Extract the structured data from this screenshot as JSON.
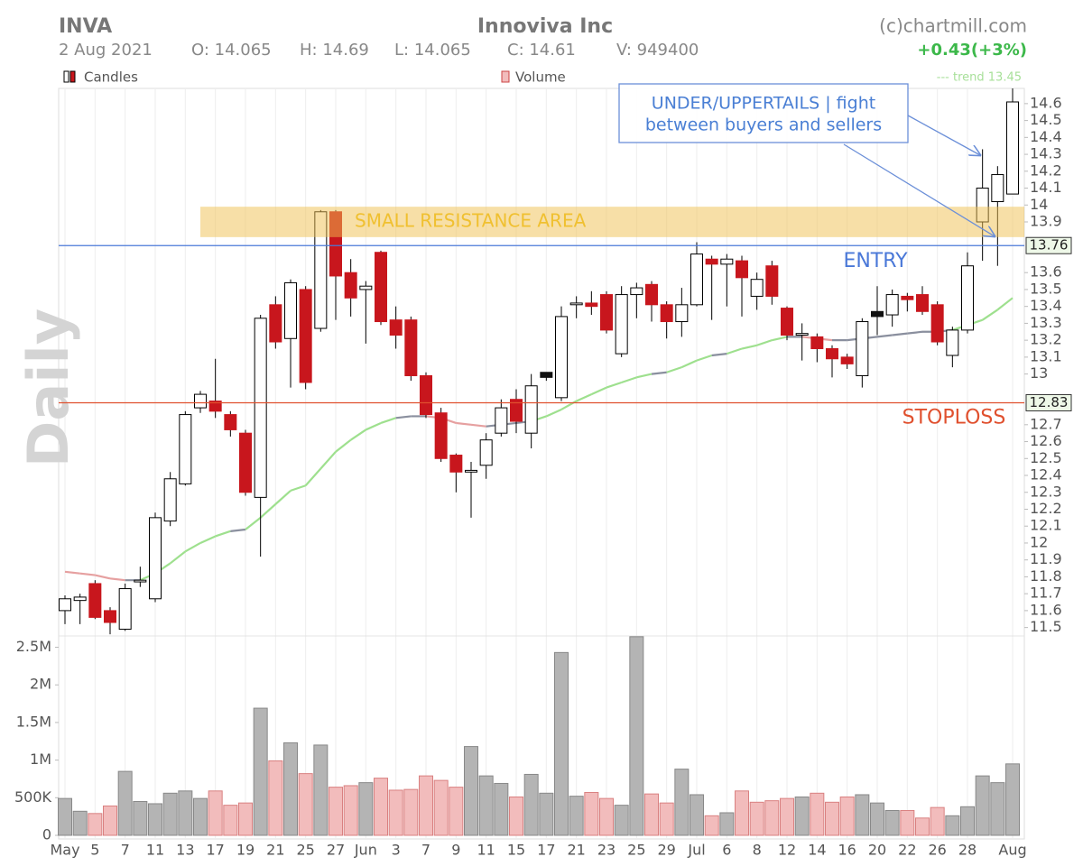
{
  "chart_data": {
    "type": "candlestick",
    "header": {
      "symbol": "INVA",
      "title": "Innoviva Inc",
      "source": "(c)chartmill.com",
      "quote": [
        "2 Aug 2021",
        "O: 14.065",
        "H: 14.69",
        "L: 14.065",
        "C: 14.61",
        "V: 949400"
      ],
      "change": "+0.43(+3%)"
    },
    "legend": {
      "candles": "Candles",
      "volume": "Volume",
      "trend": "--- trend 13.45"
    },
    "period": "Daily",
    "categories": [
      "May",
      null,
      "5",
      null,
      "7",
      null,
      "11",
      null,
      "13",
      null,
      "17",
      null,
      "19",
      null,
      "21",
      null,
      "25",
      null,
      "27",
      null,
      "Jun",
      null,
      "3",
      null,
      "7",
      null,
      "9",
      null,
      "11",
      null,
      "15",
      null,
      "17",
      null,
      "21",
      null,
      "23",
      null,
      "25",
      null,
      "29",
      null,
      "Jul",
      null,
      "6",
      null,
      "8",
      null,
      "12",
      null,
      "14",
      null,
      "16",
      null,
      "20",
      null,
      "22",
      null,
      "26",
      null,
      "28",
      null,
      null,
      "Aug"
    ],
    "open": [
      11.6,
      11.66,
      11.76,
      11.6,
      11.49,
      11.77,
      11.67,
      12.13,
      12.35,
      12.8,
      12.84,
      12.76,
      12.65,
      12.27,
      13.41,
      13.21,
      13.5,
      13.27,
      13.96,
      13.6,
      13.5,
      13.72,
      13.32,
      13.32,
      12.99,
      12.77,
      12.52,
      12.42,
      12.46,
      12.65,
      12.85,
      12.65,
      13.01,
      12.86,
      13.41,
      13.42,
      13.47,
      13.12,
      13.47,
      13.53,
      13.41,
      13.31,
      13.41,
      13.68,
      13.65,
      13.67,
      13.46,
      13.64,
      13.39,
      13.23,
      13.22,
      13.15,
      13.1,
      12.99,
      13.37,
      13.35,
      13.46,
      13.47,
      13.41,
      13.11,
      13.26,
      13.9,
      14.02,
      14.065
    ],
    "high": [
      11.69,
      11.7,
      11.78,
      11.62,
      11.76,
      11.86,
      12.18,
      12.42,
      12.78,
      12.9,
      13.09,
      12.78,
      12.67,
      13.35,
      13.46,
      13.56,
      13.52,
      13.97,
      13.97,
      13.68,
      13.55,
      13.73,
      13.4,
      13.34,
      13.01,
      12.8,
      12.53,
      12.48,
      12.65,
      12.85,
      12.91,
      13.0,
      13.01,
      13.4,
      13.46,
      13.49,
      13.49,
      13.52,
      13.54,
      13.55,
      13.43,
      13.51,
      13.78,
      13.7,
      13.71,
      13.7,
      13.6,
      13.67,
      13.4,
      13.3,
      13.24,
      13.17,
      13.12,
      13.33,
      13.52,
      13.5,
      13.48,
      13.52,
      13.43,
      13.28,
      13.72,
      14.33,
      14.23,
      14.69
    ],
    "low": [
      11.52,
      11.52,
      11.55,
      11.46,
      11.48,
      11.74,
      11.65,
      12.1,
      12.34,
      12.77,
      12.74,
      12.63,
      12.28,
      11.92,
      13.15,
      12.92,
      12.91,
      13.25,
      13.32,
      13.34,
      13.18,
      13.29,
      13.15,
      12.96,
      12.74,
      12.48,
      12.3,
      12.15,
      12.38,
      12.63,
      12.65,
      12.56,
      12.96,
      12.84,
      13.33,
      13.35,
      13.24,
      13.1,
      13.33,
      13.31,
      13.21,
      13.22,
      13.4,
      13.32,
      13.4,
      13.34,
      13.38,
      13.41,
      13.2,
      13.08,
      13.07,
      12.98,
      13.03,
      12.92,
      13.23,
      13.28,
      13.37,
      13.35,
      13.17,
      13.04,
      13.24,
      13.67,
      13.64,
      14.065
    ],
    "close": [
      11.67,
      11.68,
      11.56,
      11.53,
      11.73,
      11.78,
      12.15,
      12.38,
      12.76,
      12.88,
      12.78,
      12.67,
      12.3,
      13.33,
      13.19,
      13.54,
      12.95,
      13.96,
      13.58,
      13.45,
      13.52,
      13.31,
      13.23,
      12.99,
      12.76,
      12.5,
      12.42,
      12.43,
      12.61,
      12.8,
      12.72,
      12.93,
      12.98,
      13.34,
      13.42,
      13.4,
      13.26,
      13.47,
      13.51,
      13.41,
      13.31,
      13.41,
      13.71,
      13.65,
      13.68,
      13.57,
      13.56,
      13.46,
      13.23,
      13.24,
      13.15,
      13.09,
      13.06,
      13.31,
      13.34,
      13.47,
      13.44,
      13.37,
      13.19,
      13.26,
      13.64,
      14.1,
      14.18,
      14.61
    ],
    "ylim": [
      11.45,
      14.69
    ],
    "yticks": [
      11.5,
      11.6,
      11.7,
      11.8,
      11.9,
      12,
      12.1,
      12.2,
      12.3,
      12.4,
      12.5,
      12.6,
      12.7,
      13,
      13.1,
      13.2,
      13.3,
      13.4,
      13.5,
      13.6,
      13.9,
      14,
      14.1,
      14.2,
      14.3,
      14.4,
      14.5,
      14.6
    ],
    "grid": true,
    "colors": {
      "down": "#c8161d",
      "unchanged_down": "#111111",
      "up": "#ffffff",
      "volume_up": "#b4b4b4",
      "volume_down": "#f2bcbc",
      "trend": "#9ee08e"
    },
    "trend": {
      "values": [
        11.83,
        11.82,
        11.81,
        11.79,
        11.78,
        11.78,
        11.82,
        11.88,
        11.95,
        12.0,
        12.04,
        12.07,
        12.08,
        12.15,
        12.23,
        12.31,
        12.34,
        12.44,
        12.54,
        12.61,
        12.67,
        12.71,
        12.74,
        12.75,
        12.75,
        12.74,
        12.71,
        12.7,
        12.69,
        12.7,
        12.71,
        12.72,
        12.75,
        12.79,
        12.84,
        12.88,
        12.92,
        12.95,
        12.98,
        13.0,
        13.01,
        13.04,
        13.08,
        13.11,
        13.12,
        13.15,
        13.17,
        13.2,
        13.22,
        13.22,
        13.21,
        13.2,
        13.2,
        13.21,
        13.22,
        13.23,
        13.24,
        13.25,
        13.25,
        13.26,
        13.29,
        13.32,
        13.38,
        13.45
      ]
    },
    "volume": {
      "values": [
        490000,
        320000,
        290000,
        390000,
        850000,
        450000,
        420000,
        560000,
        590000,
        490000,
        590000,
        400000,
        430000,
        1690000,
        990000,
        1230000,
        820000,
        1200000,
        640000,
        660000,
        700000,
        760000,
        600000,
        610000,
        790000,
        730000,
        640000,
        1180000,
        790000,
        690000,
        510000,
        810000,
        560000,
        2430000,
        520000,
        570000,
        490000,
        400000,
        2640000,
        550000,
        430000,
        880000,
        540000,
        260000,
        300000,
        590000,
        440000,
        460000,
        490000,
        510000,
        560000,
        440000,
        510000,
        540000,
        430000,
        330000,
        330000,
        230000,
        370000,
        260000,
        380000,
        790000,
        700000,
        949400
      ],
      "ylim": [
        0,
        2650000
      ],
      "yticks": [
        0,
        {
          "value": 500000,
          "label": "500K"
        },
        {
          "value": 1000000,
          "label": "1M"
        },
        {
          "value": 1500000,
          "label": "1.5M"
        },
        {
          "value": 2000000,
          "label": "2M"
        },
        {
          "value": 2500000,
          "label": "2.5M"
        }
      ]
    },
    "entry": {
      "label": "ENTRY",
      "value": 13.76
    },
    "stoploss": {
      "label": "STOPLOSS",
      "value": 12.83
    },
    "resistance": {
      "label": "SMALL RESISTANCE AREA",
      "low": 13.81,
      "high": 13.99
    },
    "annotation": [
      "UNDER/UPPERTAILS | fight",
      "between buyers and sellers"
    ]
  }
}
